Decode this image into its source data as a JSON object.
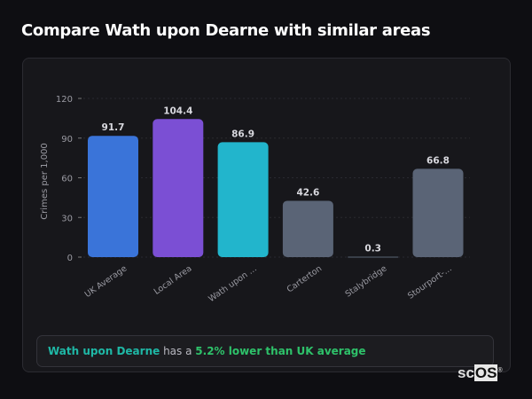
{
  "page": {
    "title": "Compare Wath upon Dearne with similar areas"
  },
  "summary": {
    "place": "Wath upon Dearne",
    "middle": " has a ",
    "delta": "5.2% lower than UK average"
  },
  "logo": {
    "text_a": "sc",
    "text_b": "OS",
    "mark": "®"
  },
  "chart_data": {
    "type": "bar",
    "title": "",
    "xlabel": "",
    "ylabel": "Crimes per 1,000",
    "ylim": [
      0,
      120
    ],
    "yticks": [
      0,
      30,
      60,
      90,
      120
    ],
    "grid": true,
    "categories": [
      "UK Average",
      "Local Area",
      "Wath upon …",
      "Carterton",
      "Stalybridge",
      "Stourport-…"
    ],
    "values": [
      91.7,
      104.4,
      86.9,
      42.6,
      0.3,
      66.8
    ],
    "data_labels": [
      "91.7",
      "104.4",
      "86.9",
      "42.6",
      "0.3",
      "66.8"
    ],
    "colors": [
      "#3a74d9",
      "#7b4fd4",
      "#22b5cc",
      "#5a6476",
      "#5a6476",
      "#5a6476"
    ]
  }
}
